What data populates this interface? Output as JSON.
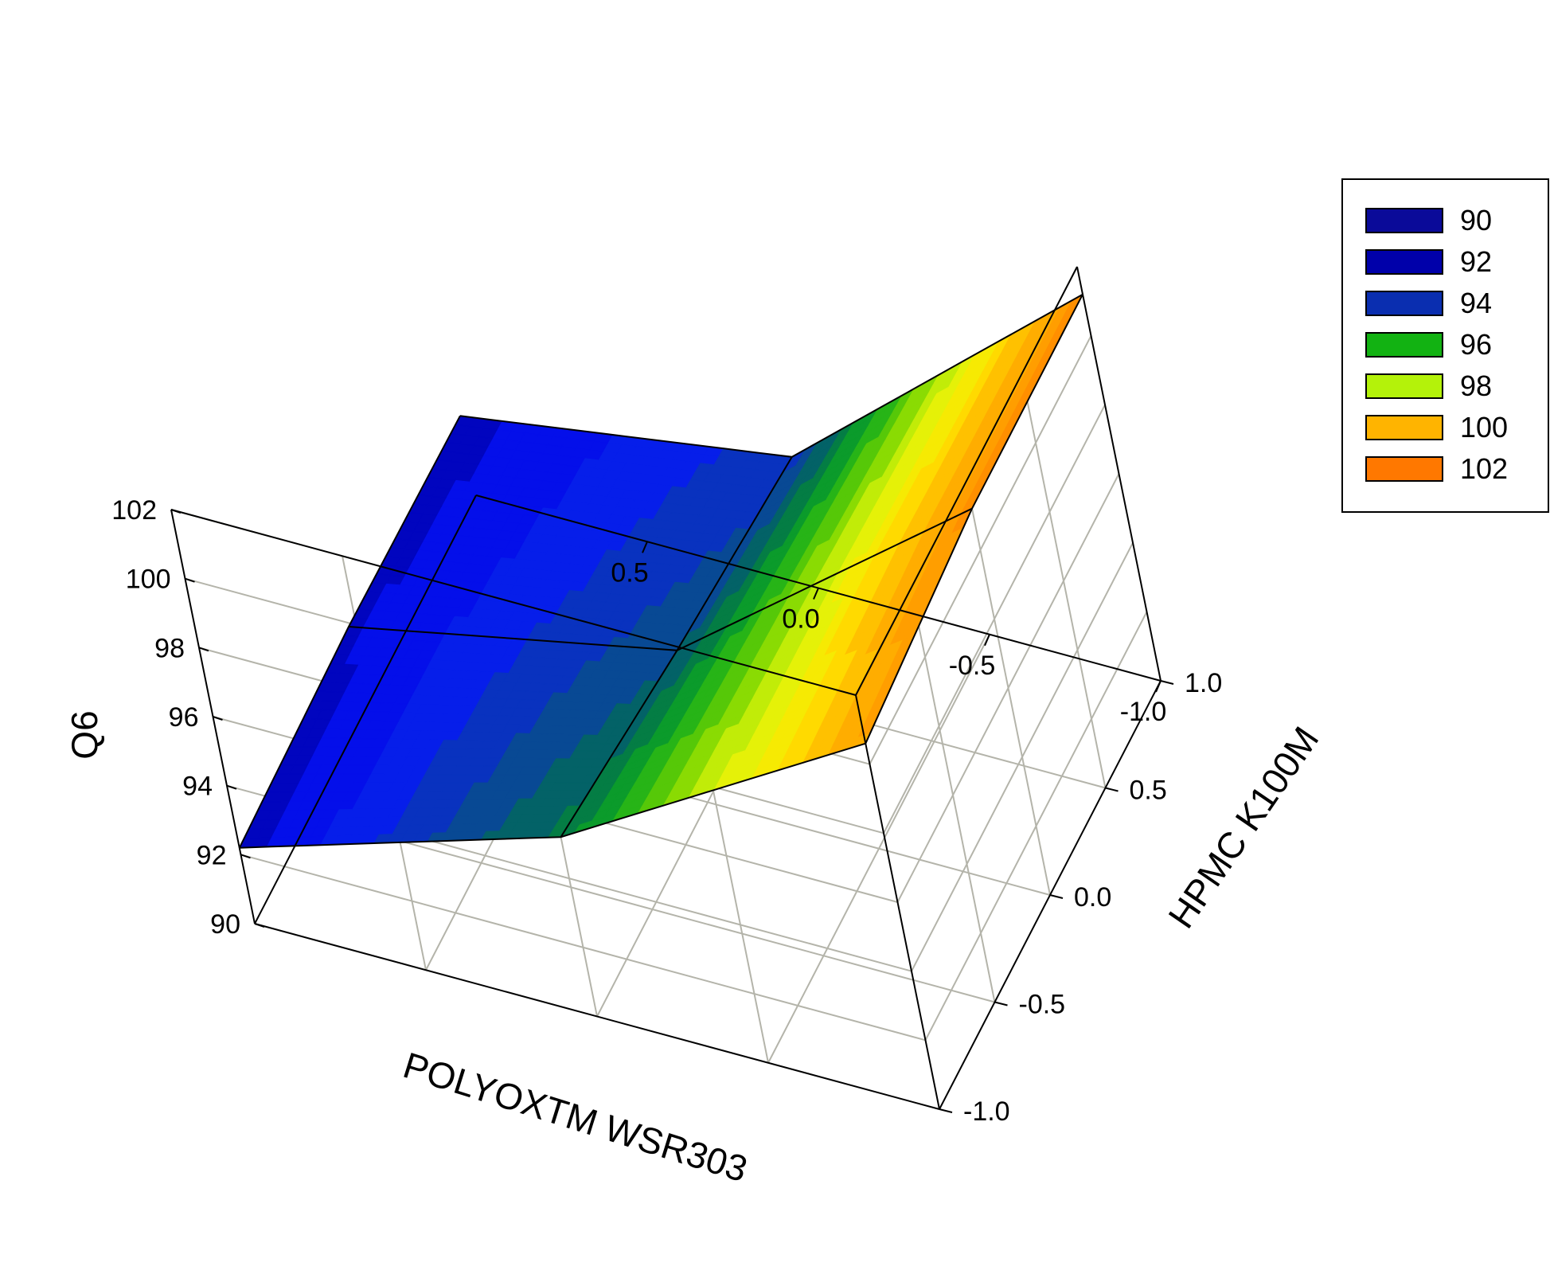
{
  "chart_data": {
    "type": "surface3d",
    "title": "",
    "xlabel": "POLYOXTM WSR303",
    "ylabel": "HPMC K100M",
    "zlabel": "Q6",
    "x_ticks": [
      "0.5",
      "0.0",
      "-0.5",
      "-1.0"
    ],
    "y_ticks": [
      "1.0",
      "0.5",
      "0.0",
      "-0.5",
      "-1.0"
    ],
    "z_ticks": [
      "90",
      "92",
      "94",
      "96",
      "98",
      "100",
      "102"
    ],
    "xlim": [
      -1,
      1
    ],
    "ylim": [
      -1,
      1
    ],
    "zlim": [
      90,
      102
    ],
    "grid": true,
    "surface": {
      "x": [
        -1,
        0,
        1
      ],
      "y": [
        -1,
        0,
        1
      ],
      "z_rows": [
        [
          100.6,
          95.2,
          92.2
        ],
        [
          101.2,
          94.4,
          92.4
        ],
        [
          101.2,
          93.8,
          92.3
        ]
      ]
    },
    "legend": {
      "placement": "top-right",
      "entries": [
        {
          "label": "90",
          "color": "#0a0a99"
        },
        {
          "label": "92",
          "color": "#0000aa"
        },
        {
          "label": "94",
          "color": "#0a2eb0"
        },
        {
          "label": "96",
          "color": "#12b212"
        },
        {
          "label": "98",
          "color": "#b4f20a"
        },
        {
          "label": "100",
          "color": "#ffb400"
        },
        {
          "label": "102",
          "color": "#ff7800"
        }
      ]
    }
  }
}
